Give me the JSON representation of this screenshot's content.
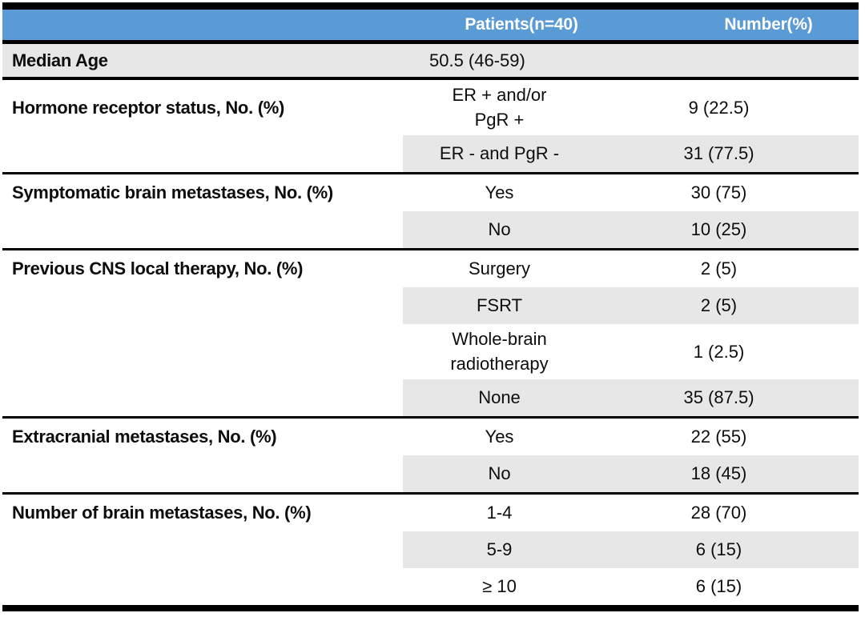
{
  "table": {
    "header": {
      "patients": "Patients(n=40)",
      "number": "Number(%)"
    },
    "median_age": {
      "label": "Median Age",
      "value": "50.5 (46-59)",
      "number": ""
    },
    "groups": [
      {
        "label": "Hormone receptor status, No. (%)",
        "rows": [
          {
            "category": "ER + and/or\nPgR +",
            "number": "9 (22.5)",
            "shaded": false
          },
          {
            "category": "ER - and PgR -",
            "number": "31 (77.5)",
            "shaded": true
          }
        ]
      },
      {
        "label": "Symptomatic brain metastases, No. (%)",
        "rows": [
          {
            "category": "Yes",
            "number": "30 (75)",
            "shaded": false
          },
          {
            "category": "No",
            "number": "10 (25)",
            "shaded": true
          }
        ]
      },
      {
        "label": "Previous CNS local therapy, No. (%)",
        "rows": [
          {
            "category": "Surgery",
            "number": "2 (5)",
            "shaded": false
          },
          {
            "category": "FSRT",
            "number": "2 (5)",
            "shaded": true
          },
          {
            "category": "Whole-brain\nradiotherapy",
            "number": "1 (2.5)",
            "shaded": false
          },
          {
            "category": "None",
            "number": "35 (87.5)",
            "shaded": true
          }
        ]
      },
      {
        "label": "Extracranial metastases, No. (%)",
        "rows": [
          {
            "category": "Yes",
            "number": "22 (55)",
            "shaded": false
          },
          {
            "category": "No",
            "number": "18 (45)",
            "shaded": true
          }
        ]
      },
      {
        "label": "Number of brain metastases, No. (%)",
        "rows": [
          {
            "category": "1-4",
            "number": "28 (70)",
            "shaded": false
          },
          {
            "category": "5-9",
            "number": "6 (15)",
            "shaded": true
          },
          {
            "category": "≥ 10",
            "number": "6 (15)",
            "shaded": false
          }
        ]
      }
    ],
    "colors": {
      "header_bg": "#5B9BD5",
      "header_text": "#FFFFFF",
      "shaded_row": "#E8E7E7",
      "border": "#000000"
    }
  }
}
